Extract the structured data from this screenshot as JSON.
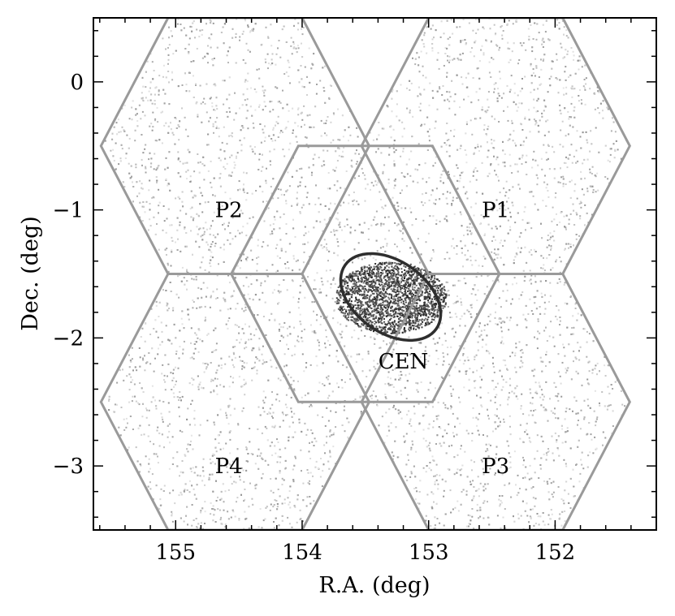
{
  "chart_data": {
    "type": "scatter",
    "xlabel": "R.A. (deg)",
    "ylabel": "Dec. (deg)",
    "xlim": [
      155.65,
      151.2
    ],
    "ylim": [
      -3.5,
      0.5
    ],
    "x_ticks": [
      {
        "value": 155,
        "label": "155"
      },
      {
        "value": 154,
        "label": "154"
      },
      {
        "value": 153,
        "label": "153"
      },
      {
        "value": 152,
        "label": "152"
      }
    ],
    "y_ticks": [
      {
        "value": 0,
        "label": "0"
      },
      {
        "value": -1,
        "label": "−1"
      },
      {
        "value": -2,
        "label": "−2"
      },
      {
        "value": -3,
        "label": "−3"
      }
    ],
    "grid": false,
    "colors": {
      "hexagon": "#9a9a9a",
      "ellipse": "#2e2e2e",
      "sources": "#555555"
    },
    "fields": [
      {
        "name": "P1",
        "ra_center": 152.47,
        "dec_center": -0.5,
        "ra_half_width": 1.06,
        "dec_half_height": 1.0
      },
      {
        "name": "P2",
        "ra_center": 154.53,
        "dec_center": -0.5,
        "ra_half_width": 1.06,
        "dec_half_height": 1.0
      },
      {
        "name": "CEN",
        "ra_center": 153.5,
        "dec_center": -1.5,
        "ra_half_width": 1.06,
        "dec_half_height": 1.0
      },
      {
        "name": "P3",
        "ra_center": 152.47,
        "dec_center": -2.5,
        "ra_half_width": 1.06,
        "dec_half_height": 1.0
      },
      {
        "name": "P4",
        "ra_center": 154.53,
        "dec_center": -2.5,
        "ra_half_width": 1.06,
        "dec_half_height": 1.0
      }
    ],
    "field_labels": [
      {
        "text": "P2",
        "ra": 154.58,
        "dec": -1.0
      },
      {
        "text": "P1",
        "ra": 152.47,
        "dec": -1.0
      },
      {
        "text": "CEN",
        "ra": 153.2,
        "dec": -2.18
      },
      {
        "text": "P4",
        "ra": 154.58,
        "dec": -3.0
      },
      {
        "text": "P3",
        "ra": 152.47,
        "dec": -3.0
      }
    ],
    "ellipse": {
      "ra_center": 153.3,
      "dec_center": -1.68,
      "ra_semi_axis": 0.44,
      "dec_semi_axis": 0.28,
      "tilt_deg": 35
    }
  }
}
